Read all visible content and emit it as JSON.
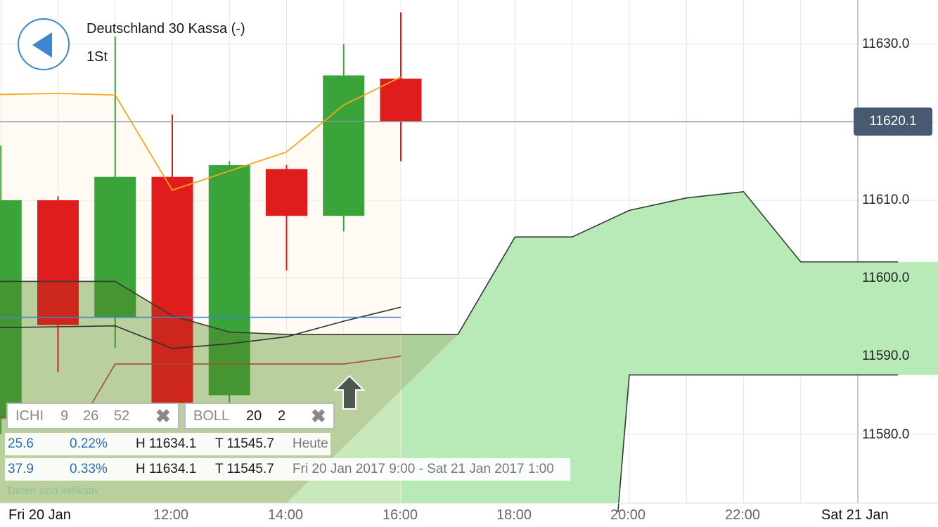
{
  "header": {
    "title": "Deutschland 30 Kassa (-)",
    "interval": "1St"
  },
  "current_price": "11620.1",
  "chart_data": {
    "type": "candlestick",
    "y_ticks": [
      "11630.0",
      "11610.0",
      "11600.0",
      "11590.0",
      "11580.0"
    ],
    "y_tick_values": [
      11630,
      11610,
      11600,
      11590,
      11580
    ],
    "x_labels": [
      "Fri 20 Jan",
      "12:00",
      "14:00",
      "16:00",
      "18:00",
      "20:00",
      "22:00",
      "Sat 21 Jan"
    ],
    "x_label_hours": [
      9.0,
      12,
      14,
      16,
      18,
      20,
      22,
      24.0
    ],
    "candles": [
      {
        "t": 9,
        "open": 11582,
        "high": 11617,
        "low": 11580,
        "close": 11610,
        "dir": "up"
      },
      {
        "t": 10,
        "open": 11610,
        "high": 11610.5,
        "low": 11588,
        "close": 11594,
        "dir": "down"
      },
      {
        "t": 11,
        "open": 11595,
        "high": 11631,
        "low": 11591,
        "close": 11613,
        "dir": "up"
      },
      {
        "t": 12,
        "open": 11613,
        "high": 11621,
        "low": 11584,
        "close": 11584,
        "dir": "down"
      },
      {
        "t": 13,
        "open": 11585,
        "high": 11615,
        "low": 11583,
        "close": 11614.5,
        "dir": "up"
      },
      {
        "t": 14,
        "open": 11614,
        "high": 11614.5,
        "low": 11601,
        "close": 11608,
        "dir": "down"
      },
      {
        "t": 15,
        "open": 11608,
        "high": 11630,
        "low": 11606,
        "close": 11626,
        "dir": "up"
      },
      {
        "t": 16,
        "open": 11625.6,
        "high": 11634.1,
        "low": 11615,
        "close": 11620.1,
        "dir": "down"
      }
    ],
    "boll_upper": [
      [
        8.5,
        11623.5
      ],
      [
        10,
        11623.7
      ],
      [
        11,
        11623.5
      ],
      [
        12,
        11611.3
      ],
      [
        14,
        11616.2
      ],
      [
        15,
        11622.2
      ],
      [
        16,
        11625.8
      ]
    ],
    "boll_mid": [
      [
        8.5,
        11595
      ],
      [
        16,
        11595
      ]
    ],
    "boll_lower": [
      [
        10.5,
        11582.8
      ],
      [
        11,
        11589
      ],
      [
        15,
        11589
      ],
      [
        16,
        11590
      ]
    ],
    "ichimoku_tenkan": [
      [
        8.5,
        11599.6
      ],
      [
        11,
        11599.6
      ],
      [
        12,
        11595.2
      ],
      [
        13,
        11593.1
      ],
      [
        14,
        11592.8
      ],
      [
        17,
        11592.8
      ],
      [
        18,
        11605.3
      ],
      [
        19,
        11605.3
      ],
      [
        20,
        11608.7
      ],
      [
        21,
        11610.3
      ],
      [
        22,
        11611.1
      ],
      [
        23,
        11602.1
      ],
      [
        24.7,
        11602.1
      ]
    ],
    "ichimoku_kijun": [
      [
        8.5,
        11593.6
      ],
      [
        11,
        11593.9
      ],
      [
        12,
        11591
      ],
      [
        13,
        11591.6
      ],
      [
        14,
        11592.5
      ],
      [
        15,
        11594.5
      ],
      [
        16,
        11596.3
      ]
    ],
    "ichimoku_span_b": [
      [
        19.8,
        11570
      ],
      [
        20,
        11587.6
      ],
      [
        24.7,
        11587.6
      ]
    ],
    "cloud_fill": "#b8eab8",
    "up_color": "#3aa33a",
    "down_color": "#e01c1c",
    "boll_upper_color": "#f4a81c",
    "boll_lower_color": "#a0522d",
    "boll_mid_color": "#3a86d0"
  },
  "indicators": {
    "ichi": {
      "name": "ICHI",
      "p1": "9",
      "p2": "26",
      "p3": "52"
    },
    "boll": {
      "name": "BOLL",
      "p1": "20",
      "p2": "2"
    }
  },
  "stats": {
    "today": {
      "change": "25.6",
      "pct": "0.22%",
      "high": "H 11634.1",
      "low": "T 11545.7",
      "range": "Heute"
    },
    "period": {
      "change": "37.9",
      "pct": "0.33%",
      "high": "H 11634.1",
      "low": "T 11545.7",
      "range": "Fri 20 Jan 2017 9:00 - Sat 21 Jan 2017 1:00"
    }
  },
  "disclaimer": "Daten sind indikativ"
}
